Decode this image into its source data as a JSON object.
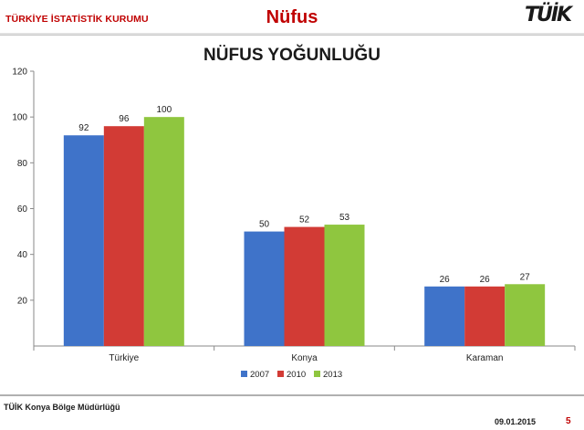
{
  "header": {
    "org_name": "TÜRKİYE İSTATİSTİK KURUMU",
    "section_title": "Nüfus",
    "logo_text": "TÜİK"
  },
  "colors": {
    "brand_red": "#c00000",
    "series_2007": "#3f73c9",
    "series_2010": "#d23b35",
    "series_2013": "#8fc63f"
  },
  "chart_data": {
    "type": "bar",
    "title": "NÜFUS YOĞUNLUĞU",
    "xlabel": "",
    "ylabel": "",
    "ylim": [
      0,
      120
    ],
    "yticks": [
      20,
      40,
      60,
      80,
      100,
      120
    ],
    "grid": false,
    "legend_position": "bottom",
    "categories": [
      "Türkiye",
      "Konya",
      "Karaman"
    ],
    "series": [
      {
        "name": "2007",
        "values": [
          92,
          50,
          26
        ]
      },
      {
        "name": "2010",
        "values": [
          96,
          52,
          26
        ]
      },
      {
        "name": "2013",
        "values": [
          100,
          53,
          27
        ]
      }
    ]
  },
  "footer": {
    "office": "TÜİK Konya Bölge Müdürlüğü",
    "date": "09.01.2015",
    "page_number": "5"
  }
}
